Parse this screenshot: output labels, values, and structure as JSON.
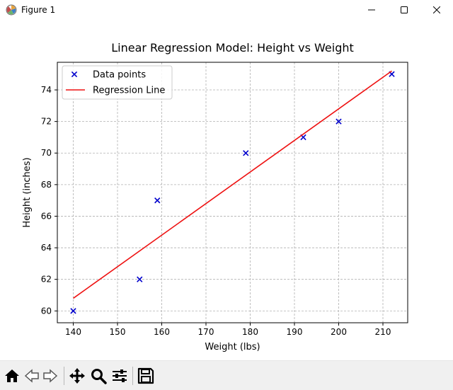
{
  "window": {
    "title": "Figure 1"
  },
  "chart_data": {
    "type": "scatter",
    "title": "Linear Regression Model: Height vs Weight",
    "xlabel": "Weight (lbs)",
    "ylabel": "Height (inches)",
    "xlim": [
      136.4,
      215.6
    ],
    "ylim": [
      59.25,
      75.75
    ],
    "xticks": [
      140,
      150,
      160,
      170,
      180,
      190,
      200,
      210
    ],
    "yticks": [
      60,
      62,
      64,
      66,
      68,
      70,
      72,
      74
    ],
    "grid": true,
    "legend_position": "upper-left",
    "series": [
      {
        "name": "Data points",
        "kind": "scatter",
        "marker": "x",
        "color": "#0000cc",
        "x": [
          140,
          155,
          159,
          179,
          192,
          200,
          212
        ],
        "y": [
          60,
          62,
          67,
          70,
          71,
          72,
          75
        ]
      },
      {
        "name": "Regression Line",
        "kind": "line",
        "color": "#ee1111",
        "x": [
          140,
          212
        ],
        "y": [
          60.8,
          75.2
        ]
      }
    ]
  },
  "toolbar": {
    "buttons": [
      "home-icon",
      "back-icon",
      "forward-icon",
      "pan-icon",
      "zoom-icon",
      "configure-icon",
      "save-icon"
    ]
  }
}
